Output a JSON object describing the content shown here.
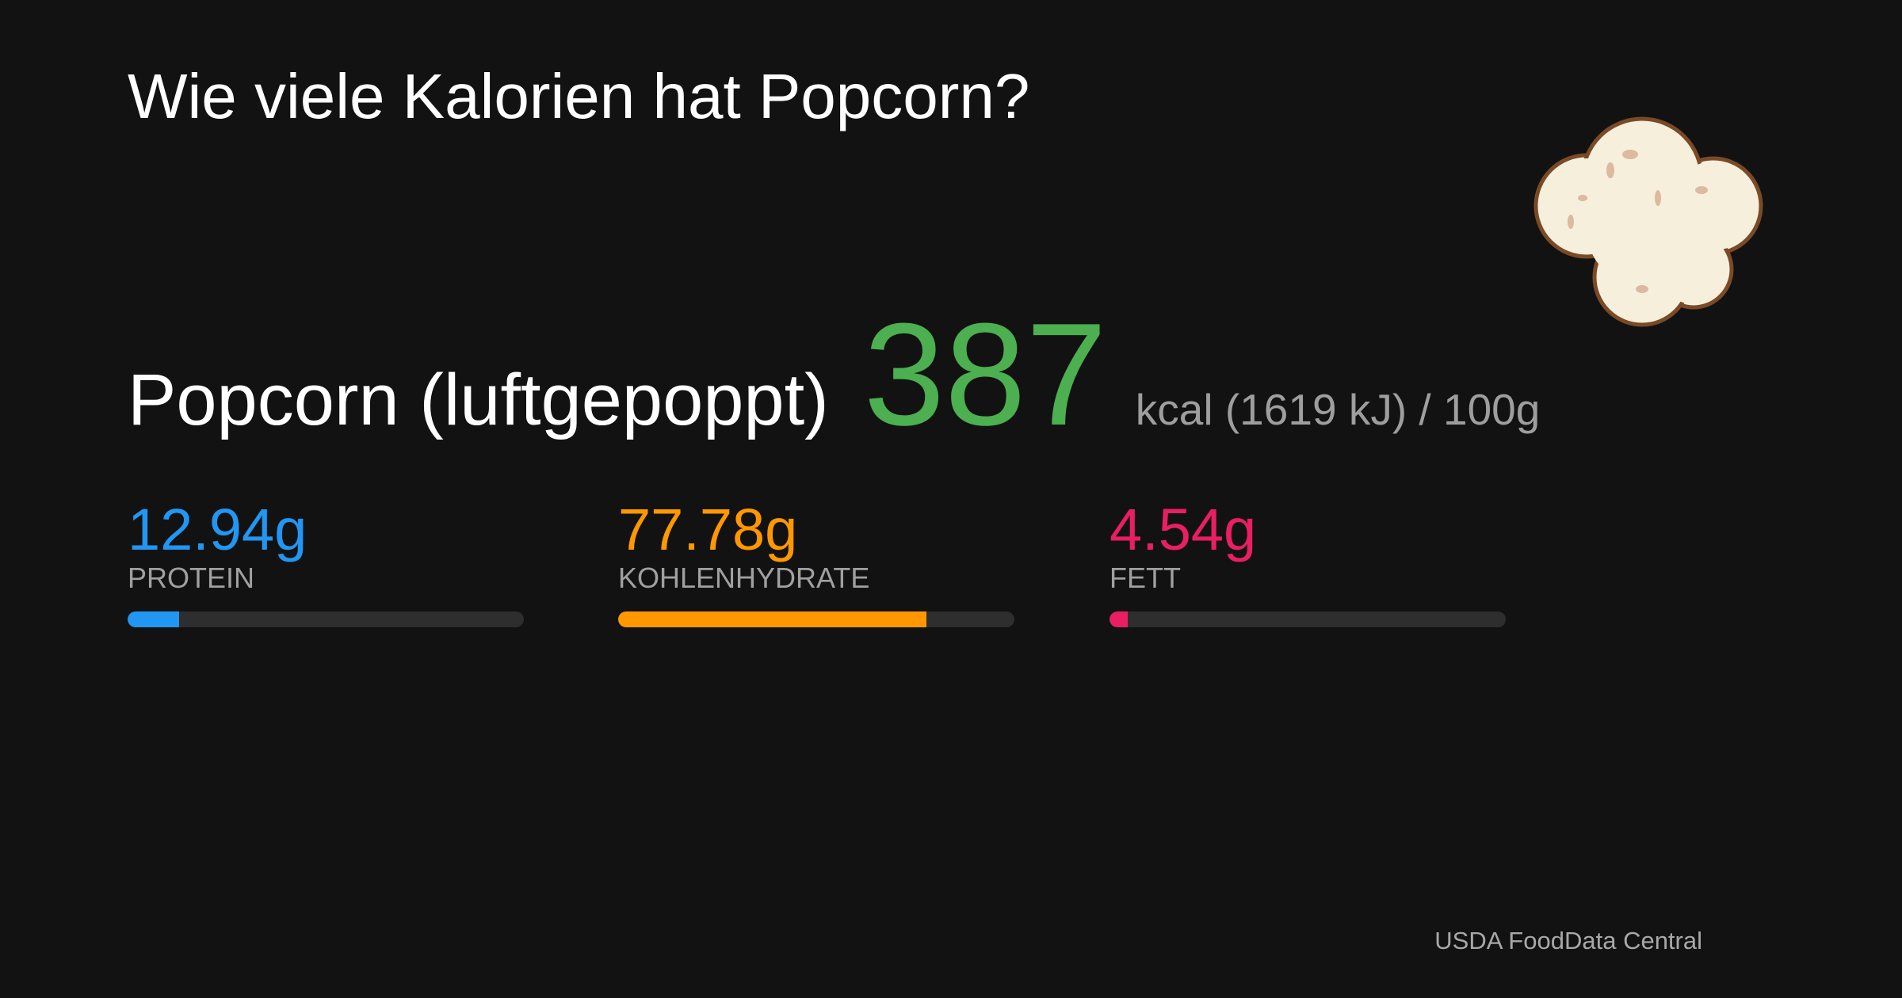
{
  "title": "Wie viele Kalorien hat Popcorn?",
  "food": {
    "name": "Popcorn (luftgepoppt)",
    "calories": 387,
    "unit": "kcal (1619 kJ) /",
    "serving": {
      "value": 100,
      "label": "100g"
    }
  },
  "nutrients": [
    {
      "name": "PROTEIN",
      "value": 12.94,
      "value_label": "12.94g",
      "color": "#2196f3"
    },
    {
      "name": "KOHLENHYDRATE",
      "value": 77.78,
      "value_label": "77.78g",
      "color": "#ff9800"
    },
    {
      "name": "FETT",
      "value": 4.54,
      "value_label": "4.54g",
      "color": "#e91e63"
    }
  ],
  "source": "USDA FoodData Central"
}
